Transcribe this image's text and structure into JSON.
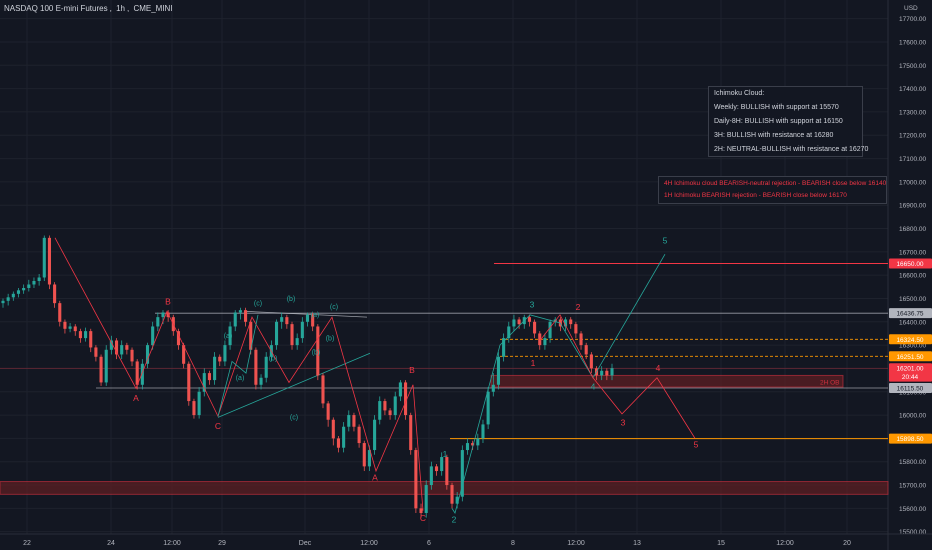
{
  "header": {
    "symbol": "NASDAQ 100 E-mini Futures",
    "interval": "1h",
    "exchange": "CME_MINI"
  },
  "currency": "USD",
  "ichimoku_box": {
    "title": "Ichimoku Cloud:",
    "lines": [
      "Weekly: BULLISH with support at 15570",
      "Daily-8H: BULLISH with support at 16150",
      "3H: BULLISH with resistance at 16280",
      "2H: NEUTRAL-BULLISH with resistance at 16270"
    ]
  },
  "bearish_box": {
    "lines": [
      "4H Ichimoku cloud BEARISH-neutral rejection - BEARISH close below 16140",
      "1H Ichimoku BEARISH rejection - BEARISH close below 16170"
    ]
  },
  "colors": {
    "bg": "#131722",
    "up": "#26a69a",
    "down": "#ef5350",
    "grid": "#1e222d",
    "text": "#b2b5be",
    "red": "#f23645",
    "teal": "#26a69a",
    "white": "#d1d4dc",
    "orange": "#ff9800",
    "zone": "#5c1f23"
  },
  "chart_data": {
    "type": "candlestick",
    "y_axis": {
      "range": [
        15490,
        17780
      ],
      "ticks": [
        15500,
        15600,
        15700,
        15800,
        15900,
        16000,
        16100,
        16200,
        16300,
        16400,
        16500,
        16600,
        16700,
        16800,
        16900,
        17000,
        17100,
        17200,
        17300,
        17400,
        17500,
        17600,
        17700
      ]
    },
    "x_axis": {
      "ticks": [
        "22",
        "24",
        "12:00",
        "29",
        "Dec",
        "12:00",
        "6",
        "8",
        "12:00",
        "13",
        "15",
        "12:00",
        "20"
      ]
    },
    "price_labels": [
      {
        "value": "16650.00",
        "price": 16650,
        "color": "#f23645"
      },
      {
        "value": "16436.75",
        "price": 16437,
        "color": "#b2b5be"
      },
      {
        "value": "16324.50",
        "price": 16325,
        "color": "#ff9800"
      },
      {
        "value": "16251.50",
        "price": 16252,
        "color": "#ff9800"
      },
      {
        "value": "16201.00",
        "price": 16201,
        "color": "#f23645"
      },
      {
        "value": "20:44",
        "price": 16165,
        "color": "#f23645"
      },
      {
        "value": "16115.50",
        "price": 16116,
        "color": "#b2b5be"
      },
      {
        "value": "15898.50",
        "price": 15899,
        "color": "#ff9800"
      }
    ],
    "zone_label": "2H OB",
    "wave_labels": [
      {
        "text": "B",
        "color": "red"
      },
      {
        "text": "A",
        "color": "red"
      },
      {
        "text": "C",
        "color": "red"
      },
      {
        "text": "(c)",
        "color": "teal"
      },
      {
        "text": "(b)",
        "color": "teal"
      },
      {
        "text": "(a)",
        "color": "teal"
      },
      {
        "text": "(c)",
        "color": "teal"
      },
      {
        "text": "(a)",
        "color": "teal"
      },
      {
        "text": "(b)",
        "color": "teal"
      },
      {
        "text": "(a)",
        "color": "teal"
      },
      {
        "text": "(c)",
        "color": "teal"
      },
      {
        "text": "(b)",
        "color": "teal"
      },
      {
        "text": "(b)",
        "color": "teal"
      },
      {
        "text": "B",
        "color": "red"
      },
      {
        "text": "A",
        "color": "red"
      },
      {
        "text": "C",
        "color": "red"
      },
      {
        "text": "1",
        "color": "teal"
      },
      {
        "text": "2",
        "color": "teal"
      },
      {
        "text": "3",
        "color": "teal"
      },
      {
        "text": "1",
        "color": "red"
      },
      {
        "text": "2",
        "color": "red"
      },
      {
        "text": "4",
        "color": "teal"
      },
      {
        "text": "5",
        "color": "teal"
      },
      {
        "text": "3",
        "color": "red"
      },
      {
        "text": "4",
        "color": "red"
      },
      {
        "text": "5",
        "color": "red"
      }
    ],
    "candles": [
      [
        16480,
        16490,
        16470,
        16500,
        16460
      ],
      [
        16490,
        16505,
        16480,
        16520,
        16470
      ],
      [
        16505,
        16520,
        16495,
        16530,
        16490
      ],
      [
        16520,
        16535,
        16510,
        16545,
        16505
      ],
      [
        16535,
        16545,
        16525,
        16560,
        16520
      ],
      [
        16545,
        16560,
        16540,
        16580,
        16530
      ],
      [
        16560,
        16575,
        16550,
        16590,
        16545
      ],
      [
        16575,
        16590,
        16565,
        16605,
        16555
      ],
      [
        16590,
        16760,
        16580,
        16770,
        16575
      ],
      [
        16760,
        16560,
        16550,
        16770,
        16540
      ],
      [
        16560,
        16480,
        16470,
        16570,
        16460
      ],
      [
        16480,
        16400,
        16390,
        16490,
        16380
      ],
      [
        16400,
        16370,
        16360,
        16410,
        16350
      ],
      [
        16370,
        16380,
        16360,
        16395,
        16355
      ],
      [
        16380,
        16360,
        16350,
        16390,
        16340
      ],
      [
        16360,
        16330,
        16320,
        16370,
        16310
      ],
      [
        16330,
        16360,
        16320,
        16375,
        16315
      ],
      [
        16360,
        16290,
        16280,
        16370,
        16270
      ],
      [
        16290,
        16250,
        16240,
        16300,
        16230
      ],
      [
        16250,
        16140,
        16130,
        16260,
        16125
      ],
      [
        16140,
        16280,
        16130,
        16300,
        16125
      ],
      [
        16280,
        16320,
        16270,
        16340,
        16260
      ],
      [
        16320,
        16260,
        16250,
        16330,
        16240
      ],
      [
        16260,
        16300,
        16250,
        16320,
        16240
      ],
      [
        16300,
        16280,
        16270,
        16310,
        16260
      ],
      [
        16280,
        16230,
        16220,
        16290,
        16210
      ],
      [
        16230,
        16130,
        16120,
        16240,
        16110
      ],
      [
        16130,
        16220,
        16120,
        16240,
        16110
      ],
      [
        16220,
        16300,
        16210,
        16310,
        16200
      ],
      [
        16300,
        16380,
        16290,
        16400,
        16280
      ],
      [
        16380,
        16420,
        16370,
        16440,
        16360
      ],
      [
        16420,
        16440,
        16400,
        16450,
        16390
      ],
      [
        16440,
        16420,
        16410,
        16450,
        16400
      ],
      [
        16420,
        16360,
        16350,
        16430,
        16340
      ],
      [
        16360,
        16300,
        16290,
        16370,
        16280
      ],
      [
        16300,
        16220,
        16210,
        16310,
        16200
      ],
      [
        16220,
        16060,
        16050,
        16230,
        16040
      ],
      [
        16060,
        16000,
        15990,
        16070,
        15985
      ],
      [
        16000,
        16100,
        15990,
        16120,
        15985
      ],
      [
        16100,
        16180,
        16090,
        16200,
        16080
      ],
      [
        16180,
        16150,
        16140,
        16190,
        16130
      ],
      [
        16150,
        16250,
        16140,
        16270,
        16130
      ],
      [
        16250,
        16230,
        16220,
        16260,
        16210
      ],
      [
        16230,
        16300,
        16220,
        16320,
        16210
      ],
      [
        16300,
        16380,
        16290,
        16400,
        16280
      ],
      [
        16380,
        16440,
        16370,
        16450,
        16360
      ],
      [
        16440,
        16450,
        16420,
        16460,
        16410
      ],
      [
        16450,
        16400,
        16390,
        16460,
        16380
      ],
      [
        16400,
        16280,
        16270,
        16410,
        16260
      ],
      [
        16280,
        16130,
        16120,
        16290,
        16110
      ],
      [
        16130,
        16160,
        16120,
        16175,
        16110
      ],
      [
        16160,
        16250,
        16150,
        16270,
        16140
      ],
      [
        16250,
        16300,
        16240,
        16320,
        16230
      ],
      [
        16300,
        16400,
        16290,
        16410,
        16280
      ],
      [
        16400,
        16420,
        16380,
        16440,
        16370
      ],
      [
        16420,
        16390,
        16380,
        16430,
        16370
      ],
      [
        16390,
        16300,
        16290,
        16400,
        16280
      ],
      [
        16300,
        16330,
        16290,
        16350,
        16280
      ],
      [
        16330,
        16400,
        16320,
        16420,
        16310
      ],
      [
        16400,
        16430,
        16390,
        16440,
        16380
      ],
      [
        16430,
        16380,
        16370,
        16440,
        16360
      ],
      [
        16380,
        16170,
        16160,
        16390,
        16150
      ],
      [
        16170,
        16050,
        16040,
        16180,
        16030
      ],
      [
        16050,
        15980,
        15970,
        16060,
        15950
      ],
      [
        15980,
        15900,
        15890,
        15990,
        15870
      ],
      [
        15900,
        15860,
        15850,
        15910,
        15840
      ],
      [
        15860,
        15950,
        15850,
        15970,
        15840
      ],
      [
        15950,
        16000,
        15940,
        16020,
        15930
      ],
      [
        16000,
        15950,
        15940,
        16010,
        15930
      ],
      [
        15950,
        15880,
        15870,
        15960,
        15860
      ],
      [
        15880,
        15780,
        15770,
        15890,
        15760
      ],
      [
        15780,
        15850,
        15770,
        15870,
        15760
      ],
      [
        15850,
        15980,
        15840,
        16000,
        15830
      ],
      [
        15980,
        16060,
        15970,
        16080,
        15960
      ],
      [
        16060,
        16020,
        16010,
        16070,
        16000
      ],
      [
        16020,
        16000,
        15990,
        16030,
        15980
      ],
      [
        16000,
        16080,
        15990,
        16100,
        15980
      ],
      [
        16080,
        16140,
        16070,
        16150,
        16060
      ],
      [
        16140,
        16000,
        15990,
        16150,
        15980
      ],
      [
        16000,
        15850,
        15840,
        16010,
        15830
      ],
      [
        15850,
        15600,
        15590,
        15860,
        15580
      ],
      [
        15600,
        15580,
        15570,
        15620,
        15560
      ],
      [
        15580,
        15700,
        15570,
        15720,
        15560
      ],
      [
        15700,
        15780,
        15690,
        15800,
        15680
      ],
      [
        15780,
        15760,
        15750,
        15790,
        15740
      ],
      [
        15760,
        15820,
        15750,
        15840,
        15740
      ],
      [
        15820,
        15700,
        15690,
        15830,
        15680
      ],
      [
        15700,
        15620,
        15610,
        15710,
        15600
      ],
      [
        15620,
        15650,
        15610,
        15670,
        15600
      ],
      [
        15650,
        15850,
        15640,
        15870,
        15630
      ],
      [
        15850,
        15880,
        15840,
        15900,
        15830
      ],
      [
        15880,
        15870,
        15860,
        15890,
        15850
      ],
      [
        15870,
        15900,
        15860,
        15920,
        15850
      ],
      [
        15900,
        15960,
        15890,
        15980,
        15880
      ],
      [
        15960,
        16100,
        15950,
        16120,
        15940
      ],
      [
        16100,
        16130,
        16090,
        16180,
        16080
      ],
      [
        16130,
        16250,
        16120,
        16270,
        16110
      ],
      [
        16250,
        16330,
        16240,
        16350,
        16230
      ],
      [
        16330,
        16380,
        16320,
        16400,
        16310
      ],
      [
        16380,
        16410,
        16370,
        16430,
        16360
      ],
      [
        16410,
        16390,
        16380,
        16420,
        16370
      ],
      [
        16390,
        16420,
        16380,
        16430,
        16370
      ],
      [
        16420,
        16400,
        16390,
        16430,
        16380
      ],
      [
        16400,
        16350,
        16340,
        16410,
        16330
      ],
      [
        16350,
        16300,
        16290,
        16360,
        16280
      ],
      [
        16300,
        16330,
        16290,
        16350,
        16280
      ],
      [
        16330,
        16400,
        16320,
        16410,
        16310
      ],
      [
        16400,
        16410,
        16390,
        16420,
        16380
      ],
      [
        16410,
        16380,
        16370,
        16420,
        16360
      ],
      [
        16380,
        16410,
        16370,
        16420,
        16360
      ],
      [
        16410,
        16390,
        16380,
        16420,
        16370
      ],
      [
        16390,
        16350,
        16340,
        16400,
        16330
      ],
      [
        16350,
        16300,
        16290,
        16360,
        16280
      ],
      [
        16300,
        16260,
        16250,
        16310,
        16240
      ],
      [
        16260,
        16200,
        16190,
        16270,
        16180
      ],
      [
        16200,
        16170,
        16160,
        16210,
        16150
      ],
      [
        16170,
        16190,
        16160,
        16210,
        16150
      ],
      [
        16190,
        16170,
        16160,
        16200,
        16150
      ],
      [
        16170,
        16201,
        16160,
        16220,
        16150
      ]
    ]
  }
}
